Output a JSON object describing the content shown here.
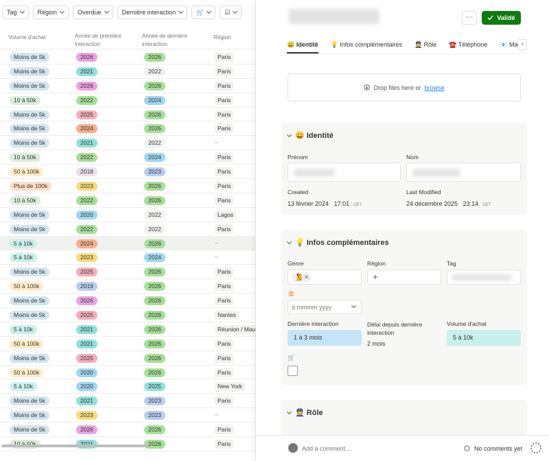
{
  "filters": [
    "Tag",
    "Région",
    "Overdue",
    "Dernière interaction",
    "🛒",
    "☑"
  ],
  "columns": [
    "Volume d'achat",
    "Année de première interaction",
    "Année de dernière interaction",
    "Région"
  ],
  "rows": [
    {
      "volume": "Moins de 5k",
      "first": "2026",
      "last": "2026",
      "region": "Paris"
    },
    {
      "volume": "Moins de 5k",
      "first": "2021",
      "last": "2022",
      "region": "Paris"
    },
    {
      "volume": "Moins de 5k",
      "first": "2026",
      "last": "2026",
      "region": "Paris"
    },
    {
      "volume": "10 à 50k",
      "first": "2022",
      "last": "2024",
      "region": "Paris"
    },
    {
      "volume": "Moins de 5k",
      "first": "2025",
      "last": "2026",
      "region": "Paris"
    },
    {
      "volume": "Moins de 5k",
      "first": "2024",
      "last": "2026",
      "region": "Paris"
    },
    {
      "volume": "Moins de 5k",
      "first": "2021",
      "last": "2022",
      "region": "–"
    },
    {
      "volume": "10 à 50k",
      "first": "2022",
      "last": "2024",
      "region": "Paris"
    },
    {
      "volume": "50 à 100k",
      "first": "2018",
      "last": "2023",
      "region": "Paris"
    },
    {
      "volume": "Plus de 100k",
      "first": "2023",
      "last": "2026",
      "region": "Paris"
    },
    {
      "volume": "10 à 50k",
      "first": "2022",
      "last": "2026",
      "region": "Paris"
    },
    {
      "volume": "Moins de 5k",
      "first": "2020",
      "last": "2022",
      "region": "Lagos"
    },
    {
      "volume": "Moins de 5k",
      "first": "2022",
      "last": "2022",
      "region": "Paris"
    },
    {
      "volume": "5 à 10k",
      "first": "2024",
      "last": "2026",
      "region": "–"
    },
    {
      "volume": "5 à 10k",
      "first": "2023",
      "last": "2024",
      "region": "–"
    },
    {
      "volume": "Moins de 5k",
      "first": "2025",
      "last": "2026",
      "region": "Paris"
    },
    {
      "volume": "50 à 100k",
      "first": "2019",
      "last": "2026",
      "region": "Paris"
    },
    {
      "volume": "Moins de 5k",
      "first": "2026",
      "last": "2026",
      "region": "Paris"
    },
    {
      "volume": "Moins de 5k",
      "first": "2025",
      "last": "2026",
      "region": "Nantes"
    },
    {
      "volume": "5 à 10k",
      "first": "2021",
      "last": "2026",
      "region": "Réunion / Mau"
    },
    {
      "volume": "50 à 100k",
      "first": "2021",
      "last": "2026",
      "region": "Paris"
    },
    {
      "volume": "Moins de 5k",
      "first": "2025",
      "last": "2026",
      "region": "Paris"
    },
    {
      "volume": "50 à 100k",
      "first": "2020",
      "last": "2026",
      "region": "Paris"
    },
    {
      "volume": "5 à 10k",
      "first": "2020",
      "last": "2025",
      "region": "New York"
    },
    {
      "volume": "Moins de 5k",
      "first": "2021",
      "last": "2023",
      "region": "Paris"
    },
    {
      "volume": "Moins de 5k",
      "first": "2023",
      "last": "2023",
      "region": "–"
    },
    {
      "volume": "Moins de 5k",
      "first": "2026",
      "last": "2026",
      "region": "Paris"
    },
    {
      "volume": "10 à 50k",
      "first": "2021",
      "last": "2026",
      "region": "Paris"
    }
  ],
  "colors": {
    "volume": {
      "Moins de 5k": "#d3e5ef",
      "10 à 50k": "#dbeddb",
      "50 à 100k": "#fdecc8",
      "Plus de 100k": "#fadec9",
      "5 à 10k": "#c9f0ec"
    },
    "year": {
      "2018": "#e8deee",
      "2019": "#b9cdf2",
      "2020": "#9fd6f0",
      "2021": "#8fe0da",
      "2022": "#a6df98",
      "2023": "#f8dc7c",
      "2024": "#f6ae8f",
      "2025": "#f4aebb",
      "2026": "#e9a2e2"
    },
    "last_year": {
      "2022": "#f1f1ef",
      "2023": "#b9cdf2",
      "2024": "#9fd6f0",
      "2025": "#8fe0da",
      "2026": "#a6df98"
    },
    "accent": "#0f7b0f",
    "link": "#2383e2"
  },
  "panel": {
    "more": "···",
    "valide": "Validé",
    "tabs": [
      "😀 Identité",
      "💡 Infos complémentaires",
      "👮 Rôle",
      "☎️ Téléphone",
      "📧 Mail"
    ],
    "drop_text": "Drop files here or",
    "drop_link": "browse",
    "identite": {
      "title": "😀 Identité",
      "prenom": "Prénom",
      "nom": "Nom",
      "created": "Created",
      "created_date": "13 février 2024",
      "created_time": "17:01",
      "created_tz": "CET",
      "modified": "Last Modified",
      "modified_date": "24 décembre 2025",
      "modified_time": "23:14",
      "modified_tz": "CET"
    },
    "infos": {
      "title": "💡 Infos complémentaires",
      "genre": "Genre",
      "genre_value": "🧏",
      "region": "Région",
      "tag": "Tag",
      "birthday_icon": "🎂",
      "date_placeholder": "d mmmm yyyy",
      "derniere": "Dernière interaction",
      "derniere_value": "1 à 3 mois",
      "delai": "Délai depuis dernière interaction",
      "delai_value": "2 mois",
      "volume": "Volume d'achat",
      "volume_value": "5 à 10k",
      "cart_icon": "🛒"
    },
    "role": {
      "title": "👮 Rôle"
    },
    "comment_placeholder": "Add a comment…",
    "no_comments": "No comments yet"
  }
}
